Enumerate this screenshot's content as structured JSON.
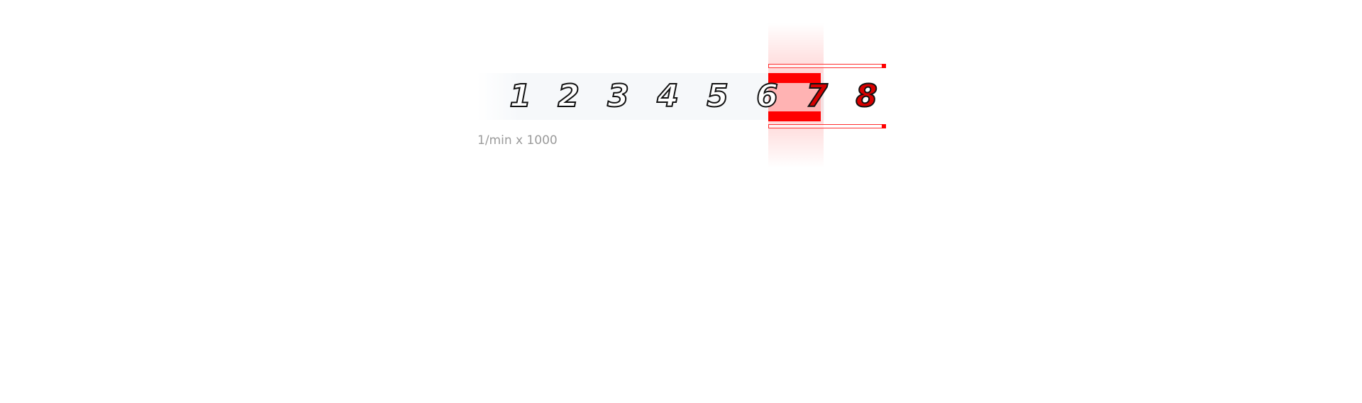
{
  "tachometer": {
    "scale_numbers": [
      {
        "label": "1",
        "redline": false
      },
      {
        "label": "2",
        "redline": false
      },
      {
        "label": "3",
        "redline": false
      },
      {
        "label": "4",
        "redline": false
      },
      {
        "label": "5",
        "redline": false
      },
      {
        "label": "6",
        "redline": false
      },
      {
        "label": "7",
        "redline": true
      },
      {
        "label": "8",
        "redline": true
      }
    ],
    "unit_label": "1/min x 1000",
    "redline_start": 6,
    "colors": {
      "redline": "#ff0000",
      "redline_fill": "#ffb3b3",
      "number_outline": "#111111",
      "red_number_fill": "#d80000",
      "unit_text": "#9a9a9a"
    }
  }
}
